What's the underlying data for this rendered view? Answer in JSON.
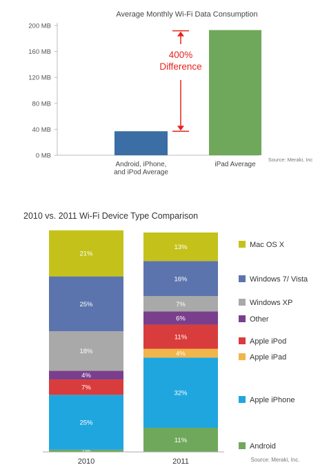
{
  "chart_data": [
    {
      "type": "bar",
      "title": "Average Monthly Wi-Fi Data Consumption",
      "categories": [
        [
          "Android, iPhone,",
          "and iPod Average"
        ],
        [
          "iPad Average"
        ]
      ],
      "values": [
        37,
        193
      ],
      "ylim": [
        0,
        200
      ],
      "ytick_values": [
        0,
        40,
        80,
        120,
        160,
        200
      ],
      "yticks": [
        "0 MB",
        "40 MB",
        "80 MB",
        "120 MB",
        "160 MB",
        "200 MB"
      ],
      "annotation": [
        "400%",
        "Difference"
      ],
      "source": "Source: Meraki, Inc",
      "colors": [
        "#3a6ea5",
        "#6fa85a"
      ],
      "annotation_color": "#e8221b",
      "grid": false
    },
    {
      "type": "bar",
      "stacked": true,
      "title": "2010 vs. 2011 Wi-Fi Device Type Comparison",
      "categories": [
        "2010",
        "2011"
      ],
      "series": [
        {
          "name": "Android",
          "values": [
            1,
            11
          ],
          "labels": [
            "1%",
            "11%"
          ],
          "color": "#6fa85a"
        },
        {
          "name": "Apple iPhone",
          "values": [
            25,
            32
          ],
          "labels": [
            "25%",
            "32%"
          ],
          "color": "#1fa6df"
        },
        {
          "name": "Apple iPad",
          "values": [
            0,
            4
          ],
          "labels": [
            "",
            "4%"
          ],
          "color": "#f2b54a"
        },
        {
          "name": "Apple iPod",
          "values": [
            7,
            11
          ],
          "labels": [
            "7%",
            "11%"
          ],
          "color": "#d93c3c"
        },
        {
          "name": "Other",
          "values": [
            4,
            6
          ],
          "labels": [
            "4%",
            "6%"
          ],
          "color": "#7a3f8c"
        },
        {
          "name": "Windows XP",
          "values": [
            18,
            7
          ],
          "labels": [
            "18%",
            "7%"
          ],
          "color": "#a9a9a9"
        },
        {
          "name": "Windows 7/ Vista",
          "values": [
            25,
            16
          ],
          "labels": [
            "25%",
            "16%"
          ],
          "color": "#5b74ad"
        },
        {
          "name": "Mac OS X",
          "values": [
            21,
            13
          ],
          "labels": [
            "21%",
            "13%"
          ],
          "color": "#c4c21a"
        }
      ],
      "legend": "right",
      "source": "Source: Meraki, Inc."
    }
  ]
}
